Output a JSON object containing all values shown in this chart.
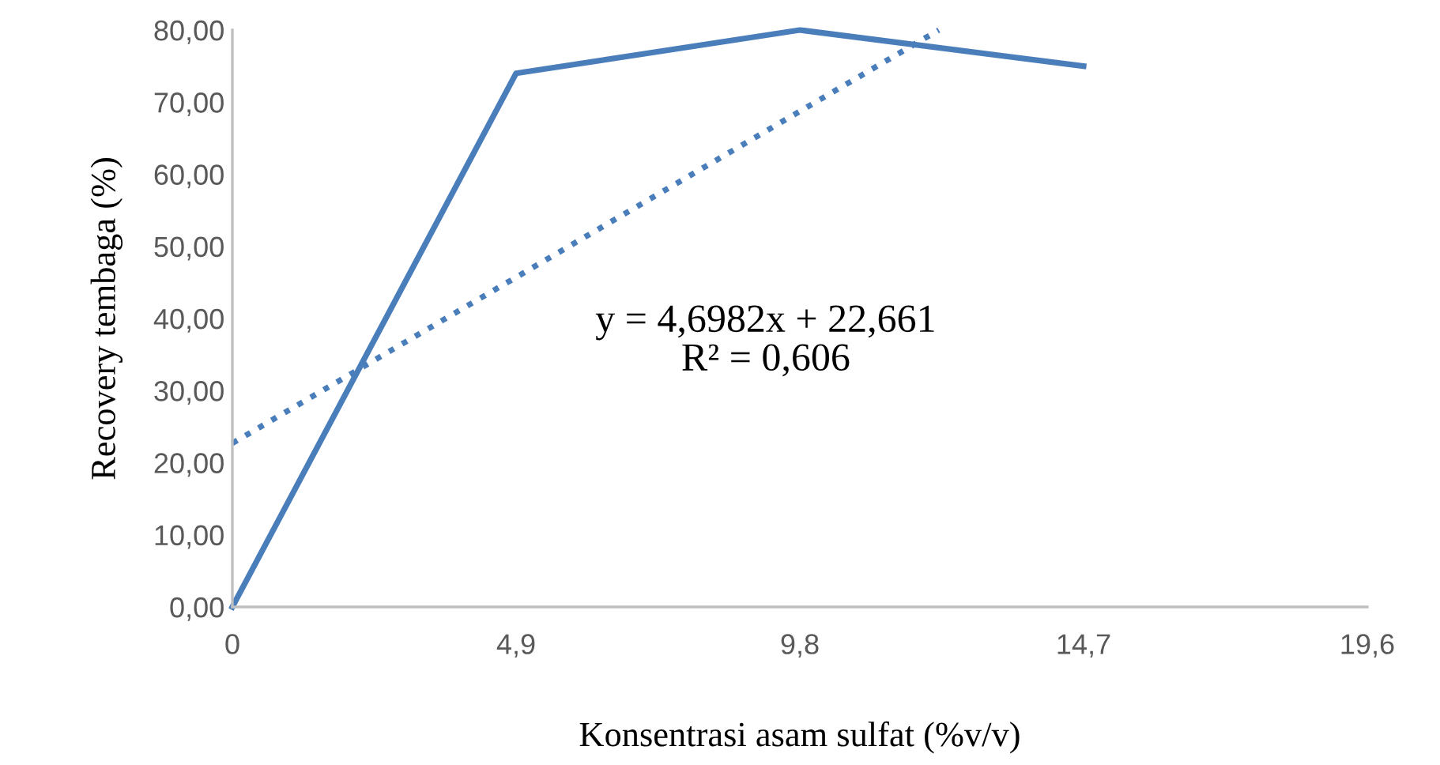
{
  "chart_data": {
    "type": "line",
    "xlabel": "Konsentrasi asam sulfat (%v/v)",
    "ylabel": "Recovery tembaga (%)",
    "x": [
      0,
      4.9,
      9.8,
      14.7
    ],
    "series": [
      {
        "color": "#4a7ebb",
        "line_style": "solid",
        "values": [
          0,
          74,
          80,
          75
        ]
      },
      {
        "color": "#4a7ebb",
        "line_style": "dotted",
        "x": [
          0,
          12.2
        ],
        "values": [
          22.7,
          80
        ]
      }
    ],
    "xlim": [
      0,
      19.6
    ],
    "xticks": [
      {
        "value": 0,
        "label": "0"
      },
      {
        "value": 4.9,
        "label": "4,9"
      },
      {
        "value": 9.8,
        "label": "9,8"
      },
      {
        "value": 14.7,
        "label": "14,7"
      },
      {
        "value": 19.6,
        "label": "19,6"
      }
    ],
    "ylim": [
      0,
      80
    ],
    "yticks": [
      {
        "value": 0,
        "label": "0,00"
      },
      {
        "value": 10,
        "label": "10,00"
      },
      {
        "value": 20,
        "label": "20,00"
      },
      {
        "value": 30,
        "label": "30,00"
      },
      {
        "value": 40,
        "label": "40,00"
      },
      {
        "value": 50,
        "label": "50,00"
      },
      {
        "value": 60,
        "label": "60,00"
      },
      {
        "value": 70,
        "label": "70,00"
      },
      {
        "value": 80,
        "label": "80,00"
      }
    ],
    "grid": false,
    "legend": false,
    "annotations": [
      "y = 4,6982x + 22,661\nR² = 0,606"
    ]
  }
}
